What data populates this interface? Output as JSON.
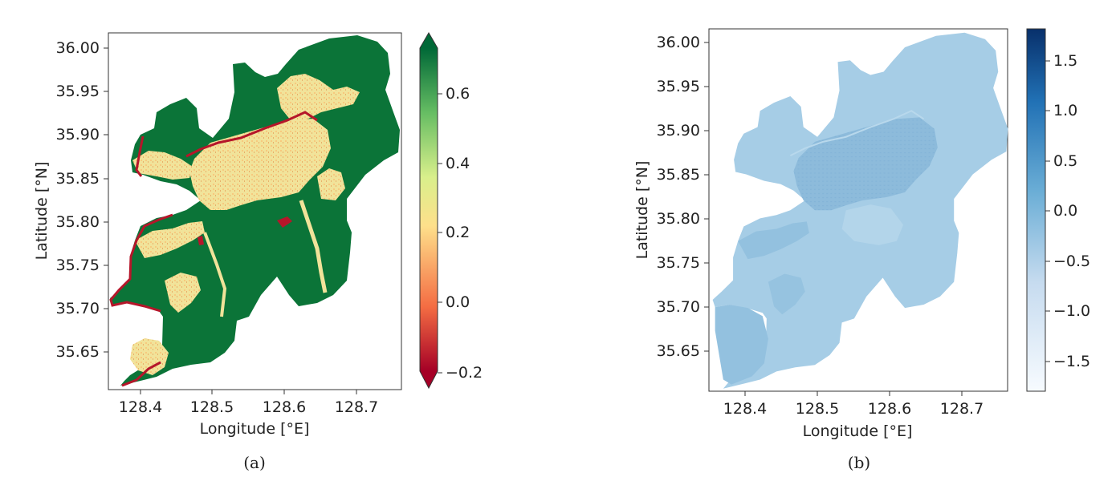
{
  "panels": [
    {
      "caption": "(a)",
      "xlabel": "Longitude [°E]",
      "ylabel": "Latitude [°N]",
      "xticks": [
        "128.4",
        "128.5",
        "128.6",
        "128.7"
      ],
      "yticks": [
        "36.00",
        "35.95",
        "35.90",
        "35.85",
        "35.80",
        "35.75",
        "35.70",
        "35.65"
      ],
      "colorbar_ticks": [
        "0.6",
        "0.4",
        "0.2",
        "0.0",
        "−0.2"
      ],
      "colormap": "RdYlGn",
      "colorbar_range": [
        -0.2,
        0.7
      ],
      "colorbar_extend": "both"
    },
    {
      "caption": "(b)",
      "xlabel": "Longitude [°E]",
      "ylabel": "Latitude [°N]",
      "xticks": [
        "128.4",
        "128.5",
        "128.6",
        "128.7"
      ],
      "yticks": [
        "36.00",
        "35.95",
        "35.90",
        "35.85",
        "35.80",
        "35.75",
        "35.70",
        "35.65"
      ],
      "colorbar_ticks": [
        "1.5",
        "1.0",
        "0.5",
        "0.0",
        "−0.5",
        "−1.0",
        "−1.5"
      ],
      "colormap": "Blues",
      "colorbar_range": [
        -1.8,
        1.8
      ],
      "colorbar_extend": "neither"
    }
  ],
  "map_extent": {
    "lon": [
      128.35,
      128.76
    ],
    "lat": [
      35.607,
      36.017
    ]
  },
  "colors": {
    "green_dark": "#0b7438",
    "urban_yellow": "#f1e39a",
    "red_edge": "#b5162a",
    "blue_light": "#a6cde6",
    "blue_mid": "#8fbddd",
    "cbar_a_stops": [
      "#a50026",
      "#f46d43",
      "#fee08b",
      "#d9ef8b",
      "#66bd63",
      "#006837"
    ],
    "cbar_b_stops": [
      "#f7fbff",
      "#c6dbef",
      "#6baed6",
      "#2171b5",
      "#08306b"
    ]
  }
}
